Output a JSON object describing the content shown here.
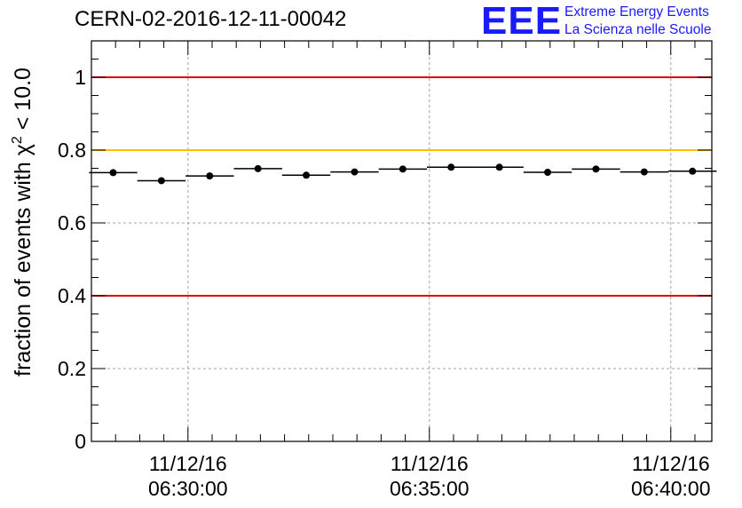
{
  "header": {
    "run_title": "CERN-02-2016-12-11-00042",
    "logo_mark": "EEE",
    "logo_line1": "Extreme Energy Events",
    "logo_line2": "La Scienza nelle Scuole"
  },
  "colors": {
    "axis": "#000000",
    "grid": "#a0a0a0",
    "points": "#000000",
    "limit_red": "#e00000",
    "limit_yellow": "#ffc000",
    "logo": "#1a1aff"
  },
  "chart_data": {
    "type": "scatter",
    "title": "",
    "ylabel_prefix": "fraction of events with ",
    "ylabel_symbol": "χ",
    "ylabel_superscript": "2",
    "ylabel_suffix": " < 10.0",
    "ylim": [
      0,
      1.1
    ],
    "xlim_minutes": [
      0,
      25.7
    ],
    "yticks": [
      {
        "value": 0,
        "label": "0"
      },
      {
        "value": 0.2,
        "label": "0.2"
      },
      {
        "value": 0.4,
        "label": "0.4"
      },
      {
        "value": 0.6,
        "label": "0.6"
      },
      {
        "value": 0.8,
        "label": "0.8"
      },
      {
        "value": 1.0,
        "label": "1"
      }
    ],
    "xticks": [
      {
        "minute": 4.0,
        "date": "11/12/16",
        "time": "06:30:00"
      },
      {
        "minute": 14.0,
        "date": "11/12/16",
        "time": "06:35:00"
      },
      {
        "minute": 24.0,
        "date": "11/12/16",
        "time": "06:40:00"
      }
    ],
    "x_minor_step": 1,
    "y_minor_step": 0.05,
    "grid": true,
    "reference_lines": [
      {
        "y": 1.0,
        "color": "#e00000"
      },
      {
        "y": 0.8,
        "color": "#ffc000"
      },
      {
        "y": 0.4,
        "color": "#e00000"
      }
    ],
    "points": [
      {
        "x": 0.9,
        "y": 0.738
      },
      {
        "x": 2.9,
        "y": 0.716
      },
      {
        "x": 4.9,
        "y": 0.729
      },
      {
        "x": 6.9,
        "y": 0.749
      },
      {
        "x": 8.9,
        "y": 0.731
      },
      {
        "x": 10.9,
        "y": 0.74
      },
      {
        "x": 12.9,
        "y": 0.748
      },
      {
        "x": 14.9,
        "y": 0.753
      },
      {
        "x": 16.9,
        "y": 0.753
      },
      {
        "x": 18.9,
        "y": 0.739
      },
      {
        "x": 20.9,
        "y": 0.748
      },
      {
        "x": 22.9,
        "y": 0.74
      },
      {
        "x": 24.9,
        "y": 0.742
      }
    ]
  }
}
